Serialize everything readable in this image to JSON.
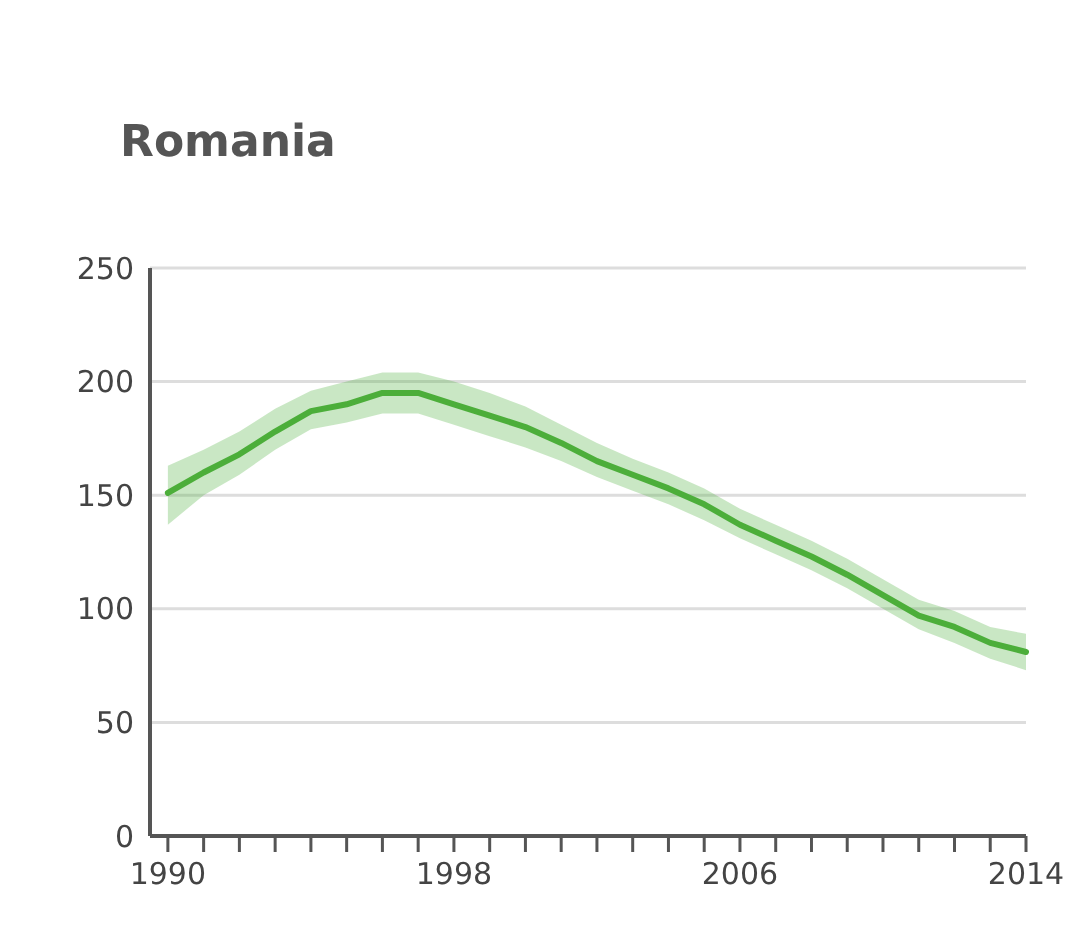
{
  "chart_data": {
    "type": "line",
    "title": "Romania",
    "x": [
      1990,
      1991,
      1992,
      1993,
      1994,
      1995,
      1996,
      1997,
      1998,
      1999,
      2000,
      2001,
      2002,
      2003,
      2004,
      2005,
      2006,
      2007,
      2008,
      2009,
      2010,
      2011,
      2012,
      2013,
      2014
    ],
    "series": [
      {
        "color": "#4cae3a",
        "values": [
          151,
          160,
          168,
          178,
          187,
          190,
          195,
          195,
          190,
          185,
          180,
          173,
          165,
          159,
          153,
          146,
          137,
          130,
          123,
          115,
          106,
          97,
          92,
          85,
          81
        ],
        "lower": [
          137,
          150,
          159,
          170,
          179,
          182,
          186,
          186,
          181,
          176,
          171,
          165,
          158,
          152,
          146,
          139,
          131,
          124,
          117,
          109,
          100,
          91,
          85,
          78,
          73
        ],
        "upper": [
          163,
          170,
          178,
          188,
          196,
          200,
          204,
          204,
          200,
          195,
          189,
          181,
          173,
          166,
          160,
          153,
          144,
          137,
          130,
          122,
          113,
          104,
          99,
          92,
          89
        ]
      }
    ],
    "xlim": [
      1989.5,
      2014
    ],
    "xticks": [
      1990,
      {
        "value": 1991,
        "label": null
      },
      {
        "value": 1992,
        "label": null
      },
      {
        "value": 1993,
        "label": null
      },
      {
        "value": 1994,
        "label": null
      },
      {
        "value": 1995,
        "label": null
      },
      {
        "value": 1996,
        "label": null
      },
      {
        "value": 1997,
        "label": null
      },
      1998,
      {
        "value": 1999,
        "label": null
      },
      {
        "value": 2000,
        "label": null
      },
      {
        "value": 2001,
        "label": null
      },
      {
        "value": 2002,
        "label": null
      },
      {
        "value": 2003,
        "label": null
      },
      {
        "value": 2004,
        "label": null
      },
      {
        "value": 2005,
        "label": null
      },
      2006,
      {
        "value": 2007,
        "label": null
      },
      {
        "value": 2008,
        "label": null
      },
      {
        "value": 2009,
        "label": null
      },
      {
        "value": 2010,
        "label": null
      },
      {
        "value": 2011,
        "label": null
      },
      {
        "value": 2012,
        "label": null
      },
      {
        "value": 2013,
        "label": null
      },
      2014
    ],
    "ylim": [
      0,
      250
    ],
    "yticks": [
      0,
      50,
      100,
      150,
      200,
      250
    ],
    "grid": "y",
    "marker": "none",
    "line_style": "solid"
  }
}
